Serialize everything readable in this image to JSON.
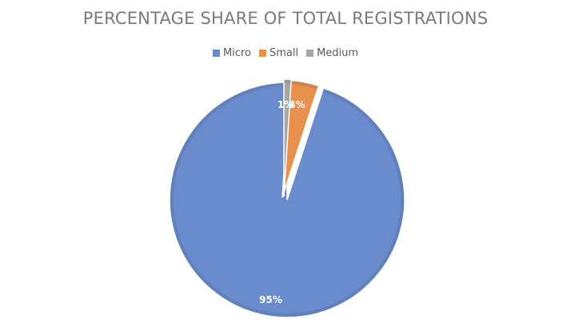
{
  "chart_data": {
    "type": "pie",
    "title": "PERCENTAGE SHARE OF TOTAL REGISTRATIONS",
    "categories": [
      "Micro",
      "Small",
      "Medium"
    ],
    "values": [
      95,
      4,
      1
    ],
    "data_labels": [
      "95%",
      "4%",
      "1%"
    ],
    "colors": [
      "#6A8CCD",
      "#E8904E",
      "#A6A6A6"
    ],
    "legend_position": "top",
    "exploded": true
  }
}
